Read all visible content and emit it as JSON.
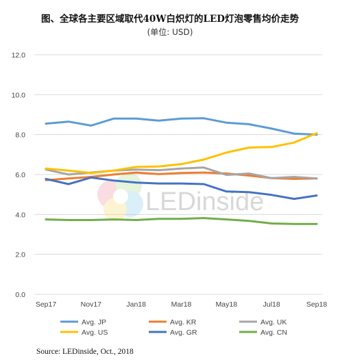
{
  "chart_data": {
    "type": "line",
    "title": "图、全球各主要区域取代40W白炽灯的LED灯泡零售均价走势",
    "subtitle": "(单位: USD)",
    "xlabel": "",
    "ylabel": "",
    "ylim": [
      0,
      12
    ],
    "yticks": [
      "0.0",
      "2.0",
      "4.0",
      "6.0",
      "8.0",
      "10.0",
      "12.0"
    ],
    "grid": true,
    "legend_position": "bottom",
    "x": [
      "Sep17",
      "Oct17",
      "Nov17",
      "Dec17",
      "Jan18",
      "Feb18",
      "Mar18",
      "Apr18",
      "May18",
      "Jun18",
      "Jul18",
      "Aug18",
      "Sep18"
    ],
    "xtick_labels": [
      "Sep17",
      "Nov17",
      "Jan18",
      "Mar18",
      "May18",
      "Jul18",
      "Sep18"
    ],
    "series": [
      {
        "name": "Avg. JP",
        "color": "#5b9bd5",
        "values": [
          8.55,
          8.65,
          8.45,
          8.8,
          8.8,
          8.7,
          8.8,
          8.82,
          8.6,
          8.52,
          8.3,
          8.05,
          8.0
        ]
      },
      {
        "name": "Avg. KR",
        "color": "#ed7d31",
        "values": [
          5.72,
          5.8,
          5.88,
          6.0,
          6.1,
          6.02,
          6.08,
          6.1,
          6.05,
          5.95,
          5.82,
          5.78,
          5.8
        ]
      },
      {
        "name": "Avg. UK",
        "color": "#a5a5a5",
        "values": [
          6.25,
          6.0,
          6.1,
          6.2,
          6.25,
          6.22,
          6.3,
          6.35,
          5.98,
          6.05,
          5.82,
          5.88,
          5.8
        ]
      },
      {
        "name": "Avg. US",
        "color": "#ffc000",
        "values": [
          6.3,
          6.2,
          6.08,
          6.2,
          6.38,
          6.4,
          6.52,
          6.75,
          7.1,
          7.35,
          7.38,
          7.6,
          8.07
        ]
      },
      {
        "name": "Avg. GR",
        "color": "#4472c4",
        "values": [
          5.78,
          5.52,
          5.85,
          5.7,
          5.6,
          5.55,
          5.55,
          5.52,
          5.15,
          5.12,
          4.98,
          4.78,
          4.95
        ]
      },
      {
        "name": "Avg. CN",
        "color": "#70ad47",
        "values": [
          3.75,
          3.72,
          3.72,
          3.75,
          3.72,
          3.78,
          3.78,
          3.82,
          3.75,
          3.68,
          3.55,
          3.52,
          3.52
        ]
      }
    ],
    "source": "Source: LEDinside, Oct., 2018",
    "watermark": "LEDinside"
  }
}
